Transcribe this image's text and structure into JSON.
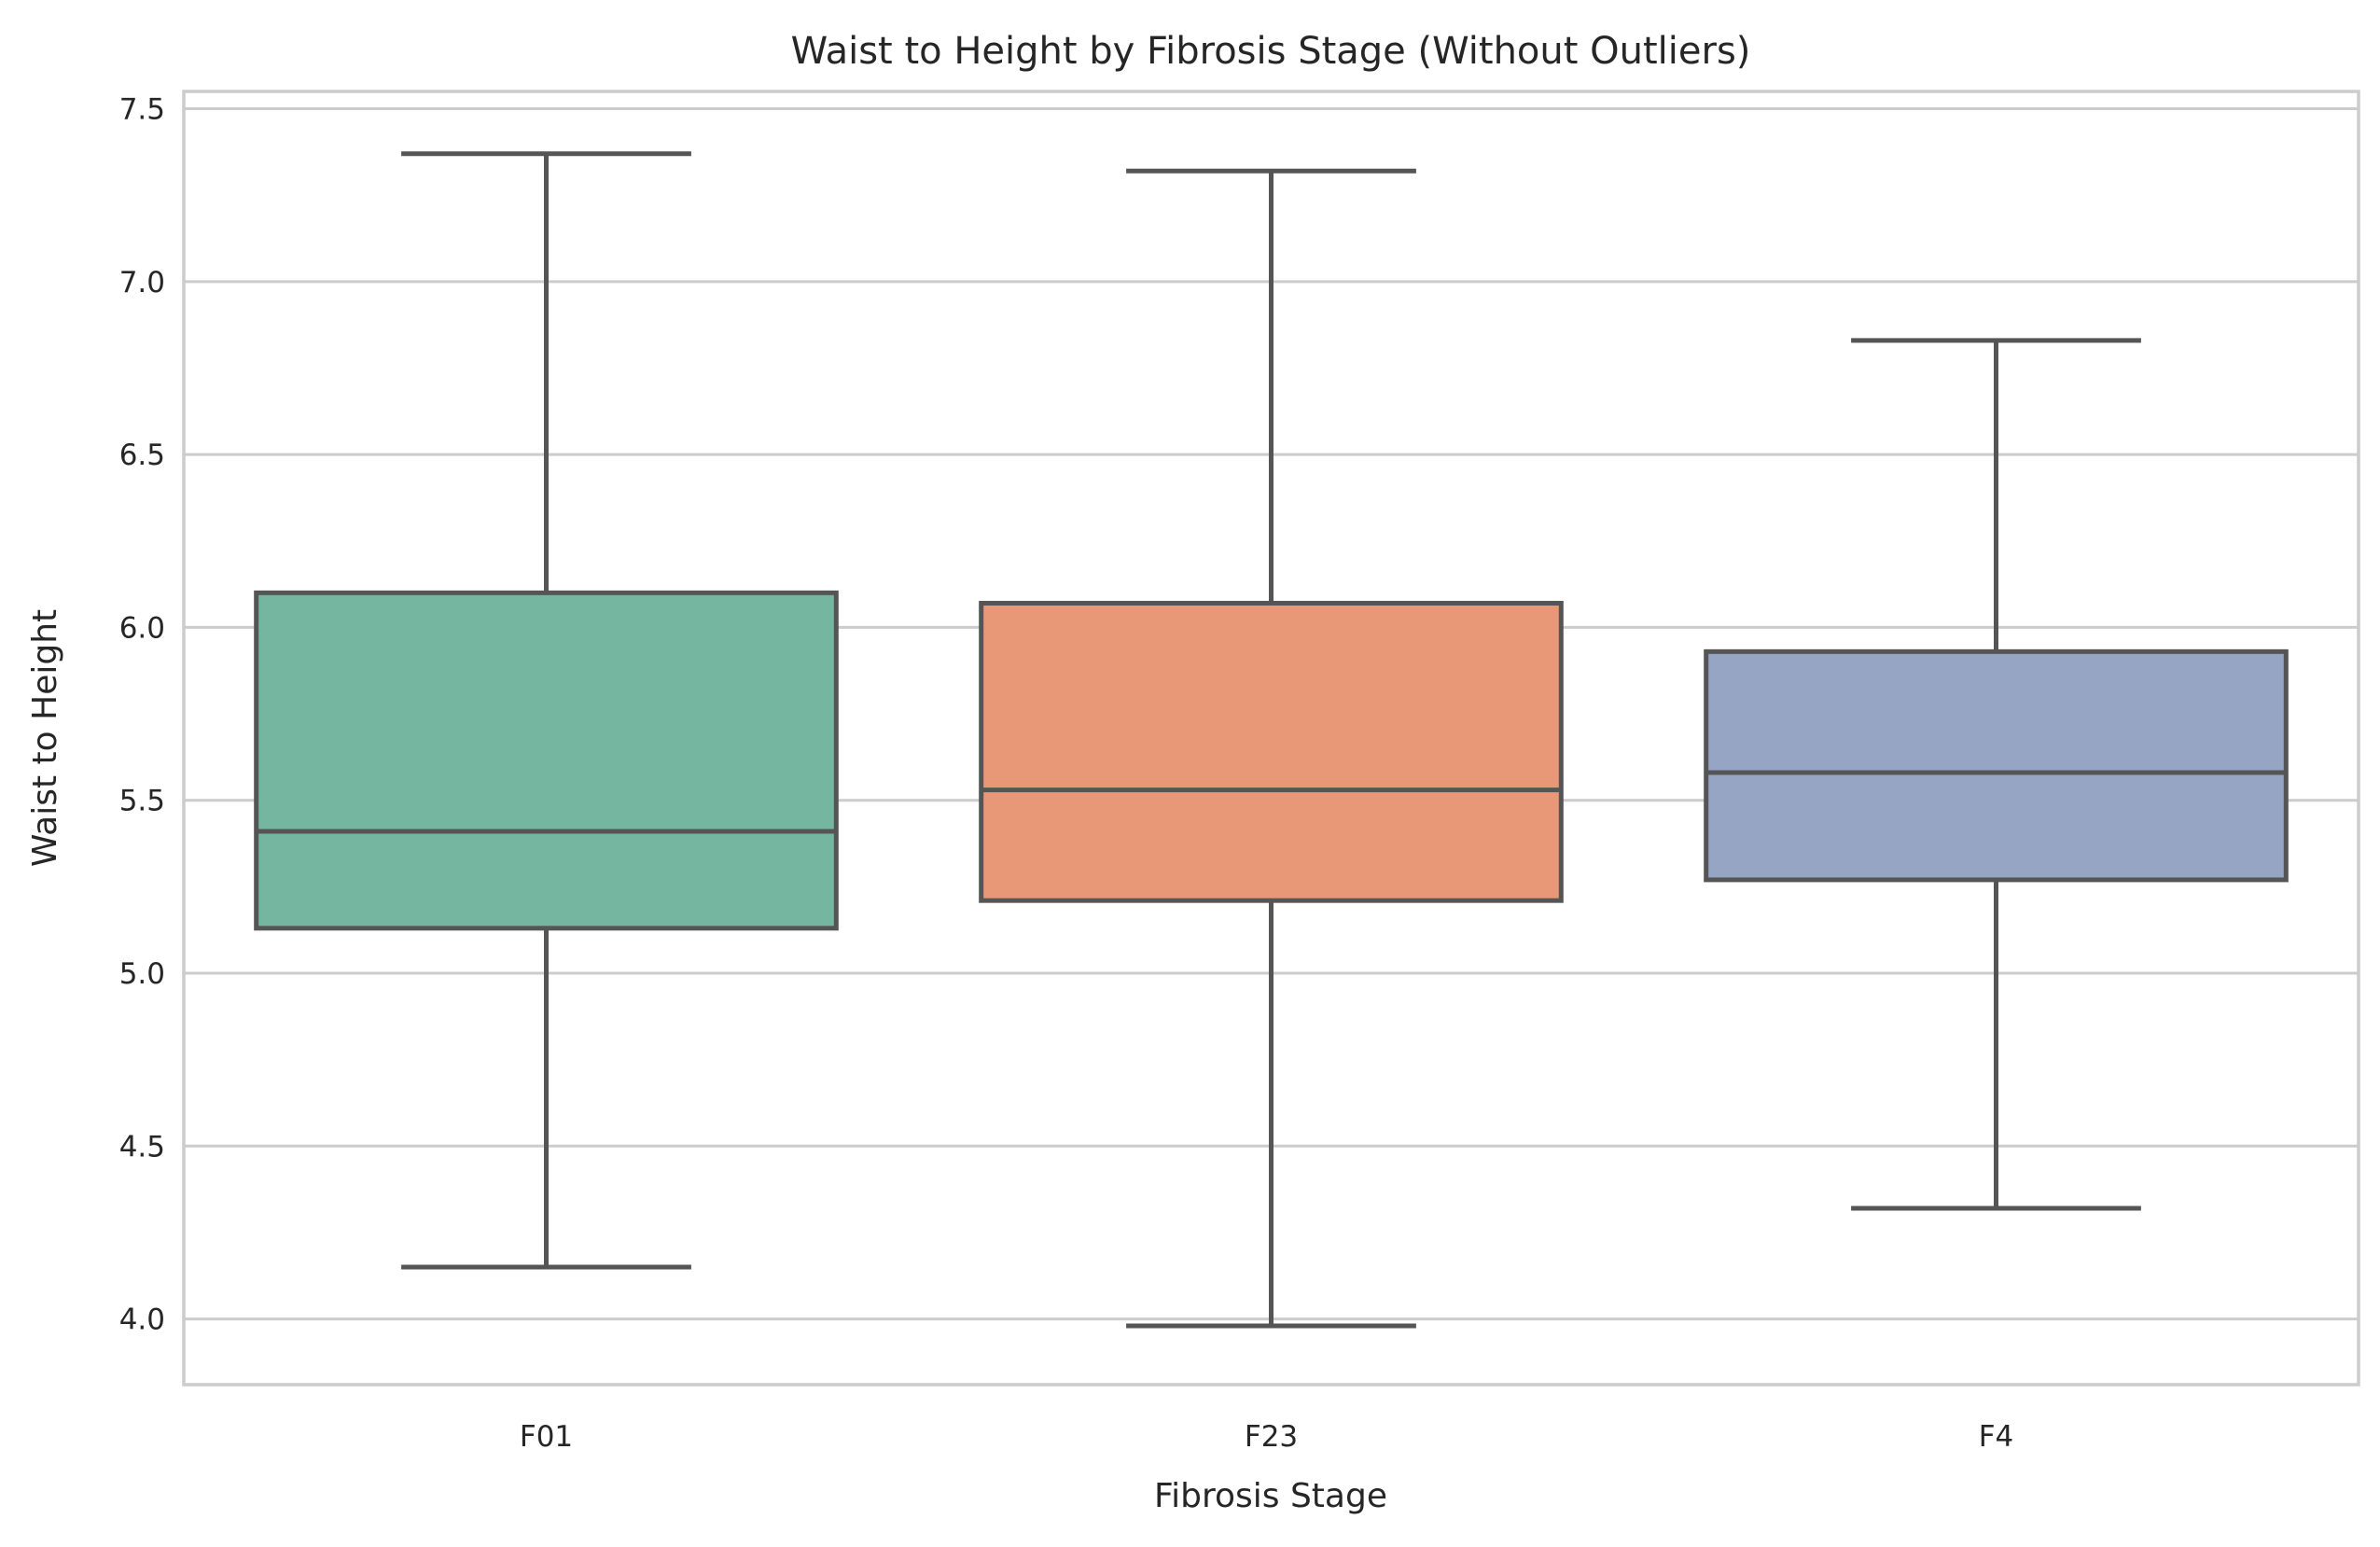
{
  "chart_data": {
    "type": "box",
    "title": "Waist to Height by Fibrosis Stage (Without Outliers)",
    "xlabel": "Fibrosis Stage",
    "ylabel": "Waist to Height",
    "ylim": [
      3.81,
      7.55
    ],
    "yticks": [
      4.0,
      4.5,
      5.0,
      5.5,
      6.0,
      6.5,
      7.0,
      7.5
    ],
    "grid": "horizontal",
    "categories": [
      "F01",
      "F23",
      "F4"
    ],
    "boxes": [
      {
        "category": "F01",
        "whisker_low": 4.15,
        "q1": 5.13,
        "median": 5.41,
        "q3": 6.1,
        "whisker_high": 7.37,
        "color": "#75b6a1"
      },
      {
        "category": "F23",
        "whisker_low": 3.98,
        "q1": 5.21,
        "median": 5.53,
        "q3": 6.07,
        "whisker_high": 7.32,
        "color": "#e99877"
      },
      {
        "category": "F4",
        "whisker_low": 4.32,
        "q1": 5.27,
        "median": 5.58,
        "q3": 5.93,
        "whisker_high": 6.83,
        "color": "#95a5c3"
      }
    ]
  }
}
